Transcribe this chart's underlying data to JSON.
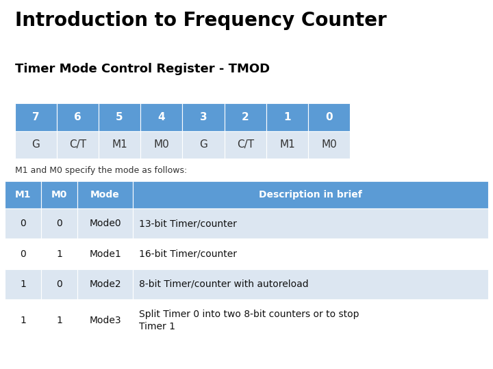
{
  "title": "Introduction to Frequency Counter",
  "subtitle": "Timer Mode Control Register - TMOD",
  "bg_color": "#ffffff",
  "title_color": "#000000",
  "subtitle_color": "#000000",
  "header_color": "#5b9bd5",
  "header_text_color": "#ffffff",
  "row_even_color": "#dce6f1",
  "row_odd_color": "#ffffff",
  "bit_labels": [
    "7",
    "6",
    "5",
    "4",
    "3",
    "2",
    "1",
    "0"
  ],
  "bit_values": [
    "G",
    "C/T",
    "M1",
    "M0",
    "G",
    "C/T",
    "M1",
    "M0"
  ],
  "note": "M1 and M0 specify the mode as follows:",
  "table_headers": [
    "M1",
    "M0",
    "Mode",
    "Description in brief"
  ],
  "table_rows": [
    [
      "0",
      "0",
      "Mode0",
      "13-bit Timer/counter"
    ],
    [
      "0",
      "1",
      "Mode1",
      "16-bit Timer/counter"
    ],
    [
      "1",
      "0",
      "Mode2",
      "8-bit Timer/counter with autoreload"
    ],
    [
      "1",
      "1",
      "Mode3",
      "Split Timer 0 into two 8-bit counters or to stop\nTimer 1"
    ]
  ],
  "title_fontsize": 20,
  "subtitle_fontsize": 13,
  "bit_header_fontsize": 11,
  "bit_value_fontsize": 11,
  "note_fontsize": 9,
  "tbl_header_fontsize": 10,
  "tbl_data_fontsize": 10
}
